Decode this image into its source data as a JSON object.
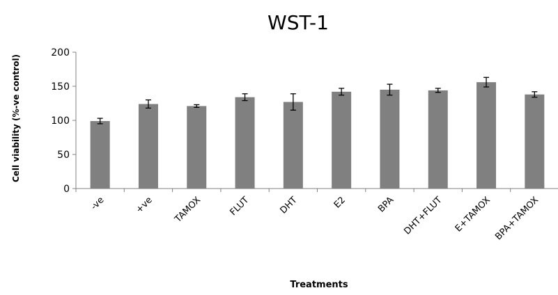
{
  "chart_data": {
    "type": "bar",
    "title": "WST-1",
    "xlabel": "Treatments",
    "ylabel": "Cell viability  (%-ve control)",
    "categories": [
      "-ve",
      "+ve",
      "TAMOX",
      "FLUT",
      "DHT",
      "E2",
      "BPA",
      "DHT+FLUT",
      "E+TAMOX",
      "BPA+TAMOX"
    ],
    "values": [
      99,
      124,
      121,
      134,
      127,
      142,
      145,
      144,
      156,
      138
    ],
    "errors": [
      4,
      6,
      2,
      5,
      12,
      5,
      8,
      3,
      7,
      4
    ],
    "ylim": [
      0,
      200
    ],
    "yticks": [
      0,
      50,
      100,
      150,
      200
    ],
    "bar_color": "#808080",
    "grid": false,
    "legend": "none"
  }
}
